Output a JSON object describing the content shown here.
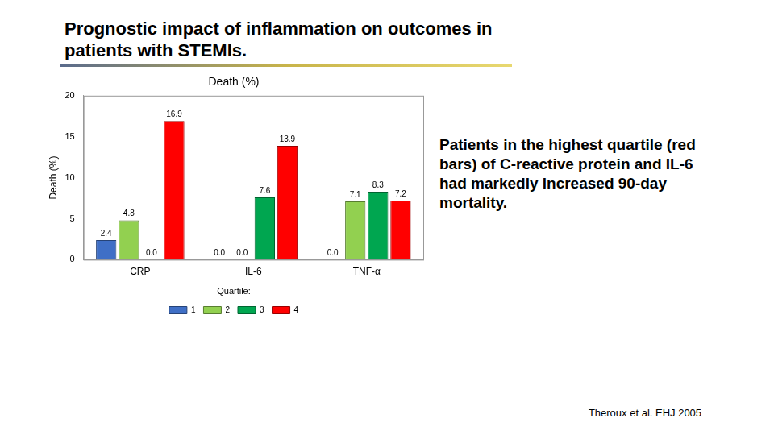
{
  "chart_data": {
    "type": "bar",
    "title": "Prognostic impact of inflammation on outcomes in patients with STEMIs.",
    "subtitle": "Death (%)",
    "y_label": "Death (%)",
    "categories": [
      "CRP",
      "IL-6",
      "TNF-α"
    ],
    "series": [
      {
        "name": "1",
        "color": "#3f6fc6",
        "values": [
          2.4,
          0.0,
          0.0
        ],
        "value_labels": [
          "2.4",
          "0.0",
          "0.0"
        ]
      },
      {
        "name": "2",
        "color": "#92d050",
        "values": [
          4.8,
          0.0,
          7.1
        ],
        "value_labels": [
          "4.8",
          "0.0",
          "7.1"
        ]
      },
      {
        "name": "3",
        "color": "#00a650",
        "values": [
          0.0,
          7.6,
          8.3
        ],
        "value_labels": [
          "0.0",
          "7.6",
          "8.3"
        ]
      },
      {
        "name": "4",
        "color": "#ff0000",
        "values": [
          16.9,
          13.9,
          7.2
        ],
        "value_labels": [
          "16.9",
          "13.9",
          "7.2"
        ]
      }
    ],
    "legend_title": "Quartile:",
    "legend": "bottom",
    "ylim": [
      0,
      20
    ],
    "yticks": [
      0,
      5,
      10,
      15,
      20
    ],
    "grid": false,
    "data_labels": true,
    "annotations": [
      "Patients in the highest quartile (red bars) of C-reactive protein and IL-6 had markedly increased 90-day mortality.",
      "Theroux et al. EHJ 2005"
    ]
  }
}
